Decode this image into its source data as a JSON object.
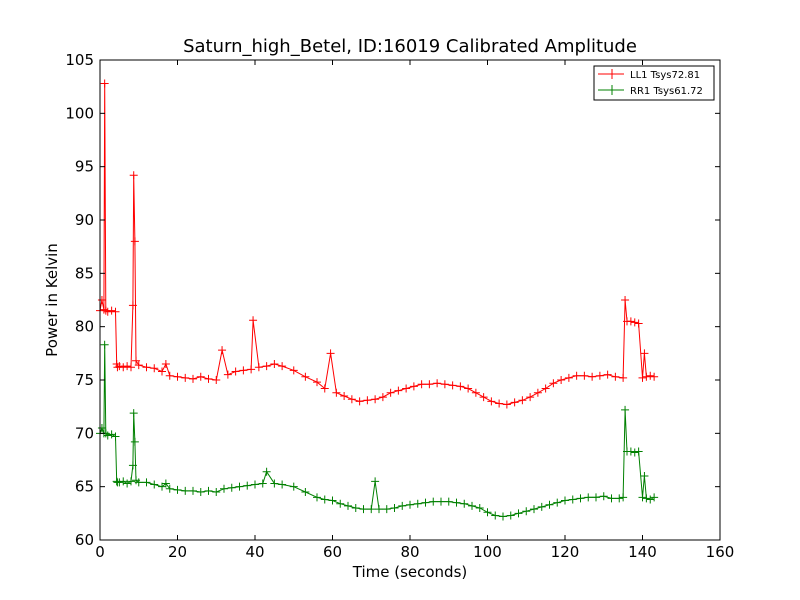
{
  "chart_data": {
    "type": "line",
    "title": "Saturn_high_Betel, ID:16019 Calibrated Amplitude",
    "xlabel": "Time (seconds)",
    "ylabel": "Power in Kelvin",
    "xlim": [
      0,
      160
    ],
    "ylim": [
      60,
      105
    ],
    "xticks": [
      0,
      20,
      40,
      60,
      80,
      100,
      120,
      140,
      160
    ],
    "yticks": [
      60,
      65,
      70,
      75,
      80,
      85,
      90,
      95,
      100,
      105
    ],
    "grid": false,
    "legend_position": "top-right",
    "marker": "+",
    "series": [
      {
        "name": "LL1 Tsys72.81",
        "color": "#ff0000",
        "x": [
          0,
          0.5,
          1,
          1.2,
          1.5,
          2,
          3,
          4,
          4.3,
          4.5,
          5,
          6,
          7,
          8,
          8.5,
          8.7,
          9,
          9.3,
          10,
          12,
          14,
          16,
          17,
          18,
          20,
          22,
          24,
          26,
          28,
          30,
          31.5,
          33,
          35,
          37,
          39,
          39.5,
          41,
          43,
          45,
          47,
          50,
          53,
          56,
          58,
          59.5,
          61,
          63,
          65,
          67,
          69,
          71,
          73,
          75,
          77,
          79,
          81,
          83,
          85,
          87,
          89,
          91,
          93,
          95,
          97,
          99,
          101,
          103,
          105,
          107,
          109,
          111,
          113,
          115,
          117,
          119,
          121,
          123,
          125,
          127,
          129,
          131,
          133,
          135,
          135.5,
          136,
          137,
          138,
          139,
          140,
          140.5,
          141,
          142,
          143
        ],
        "y": [
          81.5,
          82.5,
          81.6,
          102.8,
          81.5,
          81.4,
          81.5,
          81.4,
          76.5,
          76.2,
          76.3,
          76.2,
          76.3,
          76.2,
          82.0,
          94.2,
          88.0,
          76.8,
          76.4,
          76.2,
          76.1,
          75.8,
          76.5,
          75.4,
          75.3,
          75.2,
          75.1,
          75.3,
          75.1,
          75.0,
          77.8,
          75.5,
          75.8,
          75.9,
          76.0,
          80.6,
          76.2,
          76.3,
          76.5,
          76.3,
          75.9,
          75.3,
          74.8,
          74.2,
          77.5,
          73.8,
          73.5,
          73.2,
          73.0,
          73.1,
          73.2,
          73.4,
          73.8,
          74.0,
          74.2,
          74.4,
          74.6,
          74.6,
          74.7,
          74.6,
          74.5,
          74.4,
          74.2,
          73.8,
          73.4,
          73.0,
          72.8,
          72.7,
          72.9,
          73.1,
          73.4,
          73.8,
          74.2,
          74.7,
          75.0,
          75.2,
          75.4,
          75.4,
          75.3,
          75.4,
          75.5,
          75.3,
          75.2,
          82.5,
          80.5,
          80.5,
          80.4,
          80.3,
          75.2,
          77.5,
          75.3,
          75.4,
          75.3
        ]
      },
      {
        "name": "RR1 Tsys61.72",
        "color": "#008000",
        "x": [
          0,
          0.5,
          1,
          1.2,
          1.5,
          2,
          3,
          4,
          4.3,
          4.5,
          5,
          6,
          7,
          8,
          8.5,
          8.7,
          9,
          9.3,
          10,
          12,
          14,
          16,
          17,
          18,
          20,
          22,
          24,
          26,
          28,
          30,
          32,
          34,
          36,
          38,
          40,
          42,
          43,
          45,
          47,
          50,
          53,
          56,
          58,
          60,
          62,
          64,
          66,
          68,
          70,
          71,
          72,
          74,
          76,
          78,
          80,
          82,
          84,
          86,
          88,
          90,
          92,
          94,
          96,
          98,
          100,
          102,
          104,
          106,
          108,
          110,
          112,
          114,
          116,
          118,
          120,
          122,
          124,
          126,
          128,
          130,
          132,
          134,
          135,
          135.5,
          136,
          137,
          138,
          139,
          140,
          140.5,
          141,
          142,
          143
        ],
        "y": [
          70.0,
          70.5,
          70.0,
          78.3,
          70.0,
          69.8,
          69.9,
          69.7,
          65.5,
          65.4,
          65.4,
          65.5,
          65.3,
          65.5,
          67.0,
          71.9,
          69.2,
          65.6,
          65.4,
          65.4,
          65.2,
          65.0,
          65.3,
          64.8,
          64.7,
          64.6,
          64.6,
          64.5,
          64.6,
          64.5,
          64.8,
          64.9,
          65.0,
          65.1,
          65.2,
          65.3,
          66.4,
          65.3,
          65.2,
          65.0,
          64.5,
          64.0,
          63.8,
          63.7,
          63.4,
          63.2,
          63.0,
          62.9,
          62.9,
          65.5,
          62.9,
          62.9,
          63.0,
          63.2,
          63.3,
          63.4,
          63.5,
          63.6,
          63.6,
          63.6,
          63.5,
          63.4,
          63.2,
          63.0,
          62.6,
          62.3,
          62.2,
          62.3,
          62.5,
          62.7,
          62.9,
          63.1,
          63.3,
          63.5,
          63.7,
          63.8,
          63.9,
          64.0,
          64.0,
          64.1,
          63.9,
          63.9,
          64.0,
          72.2,
          68.3,
          68.3,
          68.2,
          68.3,
          64.0,
          66.0,
          63.9,
          63.8,
          64.0
        ]
      }
    ]
  }
}
